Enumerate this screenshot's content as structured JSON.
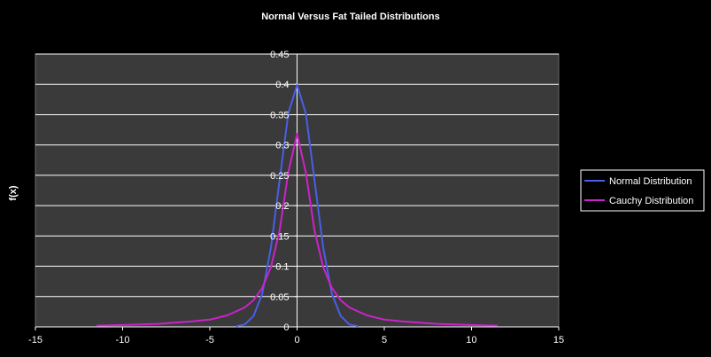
{
  "chart_data": {
    "type": "line",
    "title": "Normal Versus Fat Tailed Distributions",
    "xlabel": "",
    "ylabel": "f(x)",
    "xlim": [
      -15,
      15
    ],
    "ylim": [
      0,
      0.45
    ],
    "x_ticks": [
      "-15",
      "-10",
      "-5",
      "0",
      "5",
      "10",
      "15"
    ],
    "y_ticks": [
      "0",
      "0.05",
      "0.1",
      "0.15",
      "0.2",
      "0.25",
      "0.3",
      "0.35",
      "0.4",
      "0.45"
    ],
    "grid": "horizontal",
    "legend_position": "right",
    "background": "#3a3a3a",
    "series": [
      {
        "name": "Normal Distribution",
        "color": "#4a5ee8",
        "x": [
          -3.5,
          -3,
          -2.5,
          -2,
          -1.5,
          -1,
          -0.5,
          0,
          0.5,
          1,
          1.5,
          2,
          2.5,
          3,
          3.5
        ],
        "values": [
          0.001,
          0.004,
          0.018,
          0.054,
          0.13,
          0.242,
          0.352,
          0.399,
          0.352,
          0.242,
          0.13,
          0.054,
          0.018,
          0.004,
          0.001
        ]
      },
      {
        "name": "Cauchy Distribution",
        "color": "#cc22cc",
        "x": [
          -11.5,
          -10,
          -8,
          -6,
          -5,
          -4,
          -3,
          -2.5,
          -2,
          -1.5,
          -1,
          -0.5,
          0,
          0.5,
          1,
          1.5,
          2,
          2.5,
          3,
          4,
          5,
          6,
          8,
          10,
          11.5
        ],
        "values": [
          0.002,
          0.003,
          0.005,
          0.009,
          0.012,
          0.019,
          0.032,
          0.044,
          0.064,
          0.098,
          0.159,
          0.255,
          0.318,
          0.255,
          0.159,
          0.098,
          0.064,
          0.044,
          0.032,
          0.019,
          0.012,
          0.009,
          0.005,
          0.003,
          0.002
        ]
      }
    ]
  }
}
